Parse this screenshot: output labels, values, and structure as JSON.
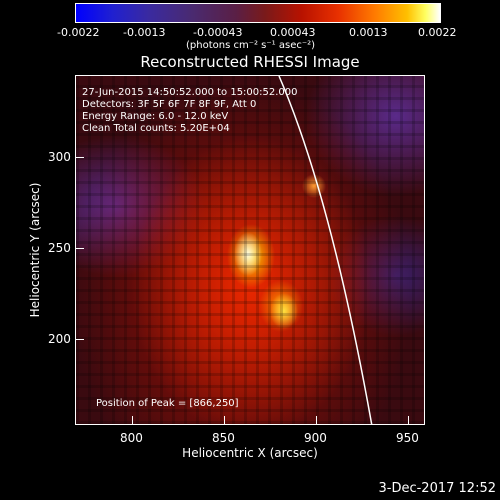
{
  "colorbar": {
    "tick_labels": [
      "-0.0022",
      "-0.0013",
      "-0.00043",
      "0.00043",
      "0.0013",
      "0.0022"
    ],
    "units_label": "(photons cm⁻² s⁻¹ asec⁻²)"
  },
  "plot": {
    "title": "Reconstructed RHESSI Image",
    "info_lines": [
      "27-Jun-2015 14:50:52.000 to 15:00:52.000",
      "Detectors: 3F 5F 6F 7F 8F 9F, Att 0",
      "Energy Range: 6.0 - 12.0 keV",
      "Clean      Total counts: 5.20E+04"
    ],
    "peak_label": "Position of Peak = [866,250]",
    "x_axis": {
      "label": "Heliocentric X (arcsec)",
      "ticks": [
        "800",
        "850",
        "900",
        "950"
      ]
    },
    "y_axis": {
      "label": "Heliocentric Y (arcsec)",
      "ticks": [
        "300",
        "250",
        "200"
      ]
    }
  },
  "footer": {
    "timestamp": "3-Dec-2017 12:52"
  }
}
